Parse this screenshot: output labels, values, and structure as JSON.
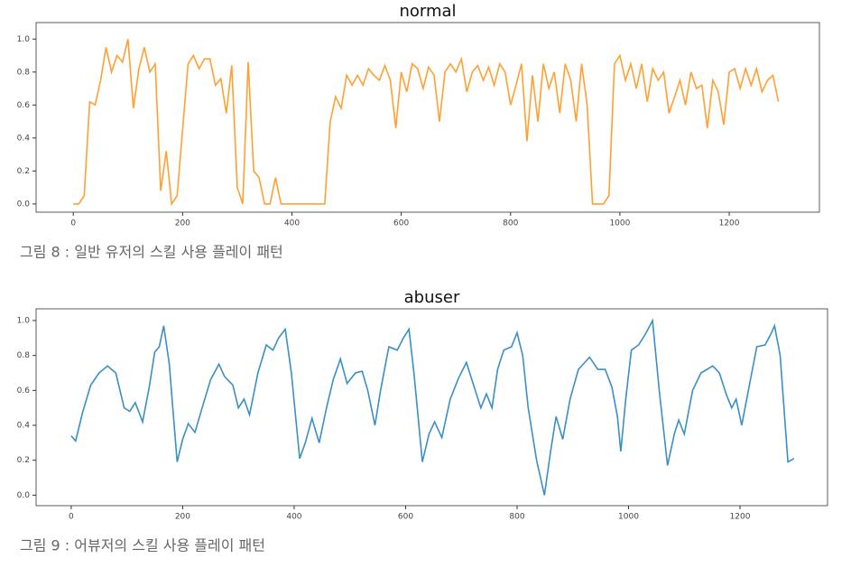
{
  "chart_data": [
    {
      "type": "line",
      "title": "normal",
      "caption": "그림 8 : 일반 유저의 스킬 사용 플레이 패턴",
      "color": "#ffa033",
      "xlim": [
        -68,
        1365
      ],
      "ylim": [
        -0.05,
        1.1
      ],
      "xticks": [
        0,
        200,
        400,
        600,
        800,
        1000,
        1200
      ],
      "yticks": [
        {
          "value": 0,
          "label": "0.0"
        },
        {
          "value": 0.2,
          "label": "0.2"
        },
        {
          "value": 0.4,
          "label": "0.4"
        },
        {
          "value": 0.6,
          "label": "0.6"
        },
        {
          "value": 0.8,
          "label": "0.8"
        },
        {
          "value": 1,
          "label": "1.0"
        }
      ],
      "x": [
        0,
        10,
        20,
        30,
        40,
        50,
        60,
        70,
        80,
        90,
        100,
        110,
        120,
        130,
        140,
        150,
        160,
        170,
        180,
        190,
        200,
        210,
        220,
        230,
        240,
        250,
        260,
        270,
        280,
        290,
        300,
        310,
        320,
        330,
        340,
        350,
        360,
        370,
        380,
        390,
        400,
        410,
        420,
        430,
        440,
        450,
        460,
        470,
        480,
        490,
        500,
        510,
        520,
        530,
        540,
        550,
        560,
        570,
        580,
        590,
        600,
        610,
        620,
        630,
        640,
        650,
        660,
        670,
        680,
        690,
        700,
        710,
        720,
        730,
        740,
        750,
        760,
        770,
        780,
        790,
        800,
        810,
        820,
        830,
        840,
        850,
        860,
        870,
        880,
        890,
        900,
        910,
        920,
        930,
        940,
        950,
        960,
        970,
        980,
        990,
        1000,
        1010,
        1020,
        1030,
        1040,
        1050,
        1060,
        1070,
        1080,
        1090,
        1100,
        1110,
        1120,
        1130,
        1140,
        1150,
        1160,
        1170,
        1180,
        1190,
        1200,
        1210,
        1220,
        1230,
        1240,
        1250,
        1260,
        1270,
        1280,
        1290
      ],
      "values": [
        0,
        0,
        0.05,
        0.62,
        0.6,
        0.75,
        0.95,
        0.8,
        0.9,
        0.86,
        1.0,
        0.58,
        0.82,
        0.95,
        0.8,
        0.85,
        0.08,
        0.32,
        0,
        0.05,
        0.45,
        0.85,
        0.9,
        0.82,
        0.88,
        0.88,
        0.72,
        0.76,
        0.55,
        0.84,
        0.1,
        0,
        0.86,
        0.2,
        0.16,
        0,
        0,
        0.16,
        0,
        0,
        0,
        0,
        0,
        0,
        0,
        0,
        0,
        0.5,
        0.65,
        0.58,
        0.78,
        0.72,
        0.78,
        0.72,
        0.82,
        0.78,
        0.75,
        0.84,
        0.75,
        0.46,
        0.8,
        0.68,
        0.85,
        0.82,
        0.7,
        0.83,
        0.78,
        0.5,
        0.8,
        0.85,
        0.8,
        0.88,
        0.68,
        0.8,
        0.84,
        0.75,
        0.83,
        0.72,
        0.85,
        0.8,
        0.6,
        0.72,
        0.85,
        0.38,
        0.78,
        0.5,
        0.85,
        0.7,
        0.8,
        0.55,
        0.85,
        0.75,
        0.5,
        0.85,
        0.6,
        0,
        0,
        0,
        0.05,
        0.85,
        0.9,
        0.75,
        0.85,
        0.7,
        0.85,
        0.62,
        0.82,
        0.75,
        0.8,
        0.55,
        0.65,
        0.75,
        0.6,
        0.8,
        0.7,
        0.72,
        0.46,
        0.75,
        0.68,
        0.48,
        0.8,
        0.82,
        0.7,
        0.82,
        0.72,
        0.82,
        0.68,
        0.75,
        0.78,
        0.62
      ]
    },
    {
      "type": "line",
      "title": "abuser",
      "caption": "그림 9 : 어뷰저의 스킬 사용 플레이 패턴",
      "color": "#3a8fc4",
      "xlim": [
        -63,
        1357
      ],
      "ylim": [
        -0.06,
        1.067
      ],
      "xticks": [
        0,
        200,
        400,
        600,
        800,
        1000,
        1200
      ],
      "yticks": [
        {
          "value": 0,
          "label": "0.0"
        },
        {
          "value": 0.2,
          "label": "0.2"
        },
        {
          "value": 0.4,
          "label": "0.4"
        },
        {
          "value": 0.6,
          "label": "0.6"
        },
        {
          "value": 0.8,
          "label": "0.8"
        },
        {
          "value": 1,
          "label": "1.0"
        }
      ],
      "x": [
        0,
        8,
        20,
        35,
        50,
        65,
        80,
        95,
        105,
        115,
        128,
        140,
        150,
        158,
        166,
        176,
        190,
        200,
        210,
        222,
        235,
        250,
        265,
        275,
        290,
        300,
        310,
        320,
        335,
        350,
        362,
        372,
        384,
        395,
        410,
        420,
        432,
        445,
        458,
        470,
        483,
        495,
        510,
        522,
        532,
        545,
        555,
        570,
        585,
        596,
        606,
        615,
        630,
        642,
        652,
        665,
        680,
        695,
        709,
        720,
        735,
        745,
        755,
        765,
        776,
        790,
        800,
        810,
        820,
        835,
        849,
        860,
        870,
        882,
        895,
        910,
        930,
        945,
        958,
        970,
        980,
        986,
        995,
        1005,
        1018,
        1030,
        1043,
        1055,
        1070,
        1082,
        1090,
        1100,
        1115,
        1130,
        1151,
        1163,
        1175,
        1185,
        1193,
        1203,
        1215,
        1230,
        1245,
        1255,
        1262,
        1272,
        1286,
        1297
      ],
      "values": [
        0.34,
        0.31,
        0.47,
        0.63,
        0.7,
        0.74,
        0.7,
        0.5,
        0.48,
        0.53,
        0.42,
        0.62,
        0.82,
        0.85,
        0.97,
        0.75,
        0.19,
        0.32,
        0.41,
        0.36,
        0.5,
        0.66,
        0.75,
        0.68,
        0.63,
        0.5,
        0.55,
        0.46,
        0.7,
        0.86,
        0.83,
        0.9,
        0.95,
        0.7,
        0.21,
        0.3,
        0.44,
        0.3,
        0.5,
        0.66,
        0.78,
        0.64,
        0.7,
        0.71,
        0.6,
        0.4,
        0.6,
        0.85,
        0.83,
        0.9,
        0.95,
        0.7,
        0.19,
        0.35,
        0.42,
        0.33,
        0.55,
        0.67,
        0.76,
        0.65,
        0.5,
        0.58,
        0.5,
        0.72,
        0.83,
        0.85,
        0.93,
        0.8,
        0.5,
        0.2,
        0,
        0.25,
        0.45,
        0.32,
        0.55,
        0.72,
        0.79,
        0.72,
        0.72,
        0.62,
        0.45,
        0.25,
        0.55,
        0.83,
        0.86,
        0.92,
        1.0,
        0.6,
        0.17,
        0.35,
        0.43,
        0.35,
        0.6,
        0.7,
        0.74,
        0.7,
        0.58,
        0.5,
        0.55,
        0.4,
        0.6,
        0.85,
        0.86,
        0.92,
        0.97,
        0.8,
        0.19,
        0.21
      ]
    }
  ]
}
